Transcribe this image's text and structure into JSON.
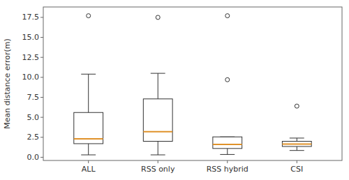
{
  "chart_data": {
    "type": "box",
    "categories": [
      "ALL",
      "RSS only",
      "RSS hybrid",
      "CSI"
    ],
    "boxes": [
      {
        "med": 2.3,
        "q1": 1.7,
        "q3": 5.6,
        "whislo": 0.3,
        "whishi": 10.4,
        "fliers": [
          17.7
        ]
      },
      {
        "med": 3.2,
        "q1": 2.0,
        "q3": 7.3,
        "whislo": 0.3,
        "whishi": 10.5,
        "fliers": [
          17.5
        ]
      },
      {
        "med": 1.6,
        "q1": 1.1,
        "q3": 2.55,
        "whislo": 0.35,
        "whishi": 2.55,
        "fliers": [
          17.7,
          9.7
        ]
      },
      {
        "med": 1.65,
        "q1": 1.35,
        "q3": 2.0,
        "whislo": 0.85,
        "whishi": 2.4,
        "fliers": [
          6.4
        ]
      }
    ],
    "ylabel": "Mean distance error(m)",
    "ylim": [
      -0.4,
      18.8
    ],
    "yticks": [
      {
        "value": 0.0,
        "label": "0.0"
      },
      2.5,
      {
        "value": 5.0,
        "label": "5.0"
      },
      7.5,
      {
        "value": 10.0,
        "label": "10.0"
      },
      12.5,
      {
        "value": 15.0,
        "label": "15.0"
      },
      17.5
    ],
    "color": "#e0922a",
    "grid": false
  }
}
